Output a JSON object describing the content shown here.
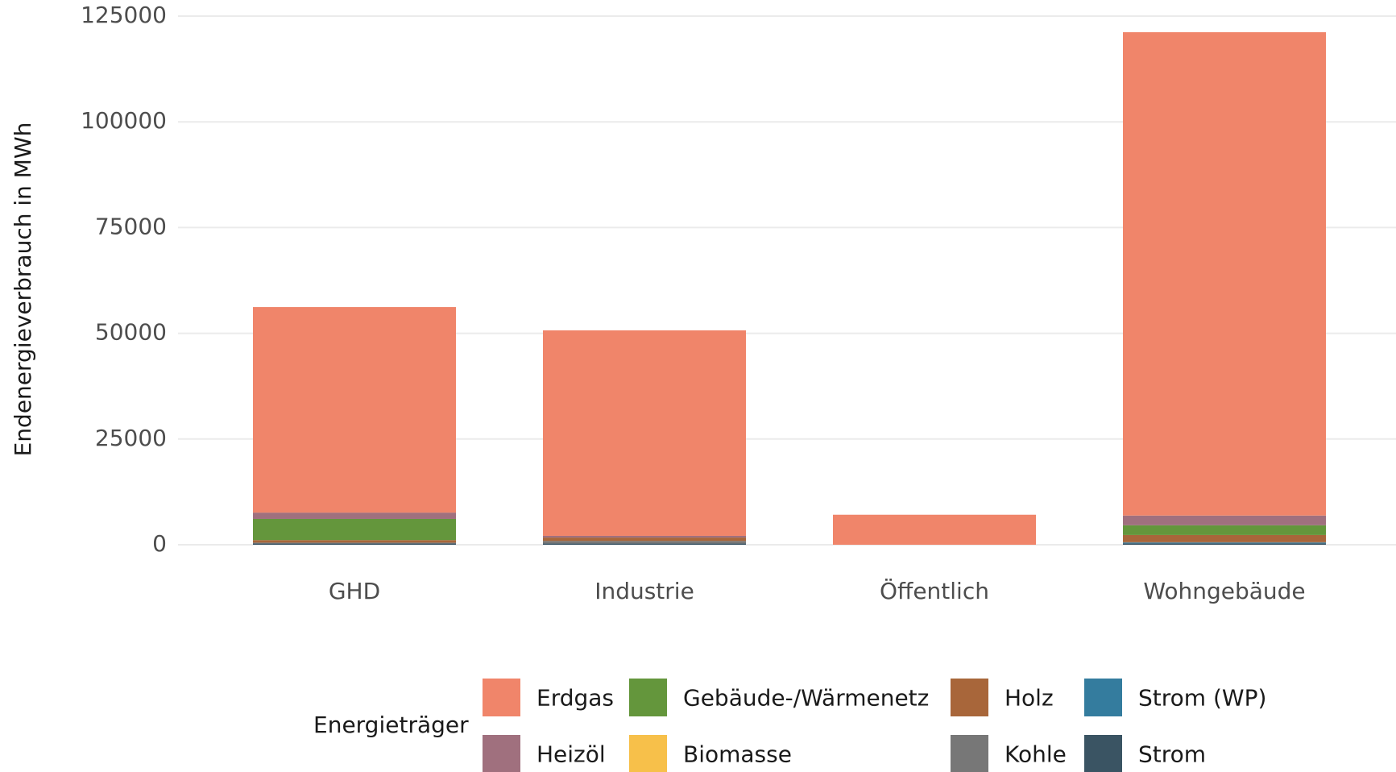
{
  "chart_data": {
    "type": "stacked_bar",
    "y_label": "Endenergieverbrauch in MWh",
    "legend_title": "Energieträger",
    "categories": [
      "GHD",
      "Industrie",
      "Öffentlich",
      "Wohngebäude"
    ],
    "ylim": [
      0,
      125000
    ],
    "yticks": [
      0,
      25000,
      50000,
      75000,
      100000,
      125000
    ],
    "grid": true,
    "legend_position": "bottom",
    "series": [
      {
        "name": "Erdgas",
        "color": "#f0856a",
        "values": [
          48600,
          48600,
          7100,
          114300
        ]
      },
      {
        "name": "Heizöl",
        "color": "#a0707e",
        "values": [
          1500,
          400,
          0,
          2300
        ]
      },
      {
        "name": "Gebäude-/Wärmenetz",
        "color": "#64963c",
        "values": [
          5000,
          0,
          0,
          2300
        ]
      },
      {
        "name": "Biomasse",
        "color": "#f7c04a",
        "values": [
          0,
          0,
          0,
          0
        ]
      },
      {
        "name": "Holz",
        "color": "#a8663a",
        "values": [
          600,
          800,
          0,
          1700
        ]
      },
      {
        "name": "Kohle",
        "color": "#777777",
        "values": [
          200,
          600,
          0,
          100
        ]
      },
      {
        "name": "Strom (WP)",
        "color": "#347c9e",
        "values": [
          0,
          0,
          0,
          200
        ]
      },
      {
        "name": "Strom",
        "color": "#3a5463",
        "values": [
          300,
          300,
          0,
          300
        ]
      }
    ]
  }
}
